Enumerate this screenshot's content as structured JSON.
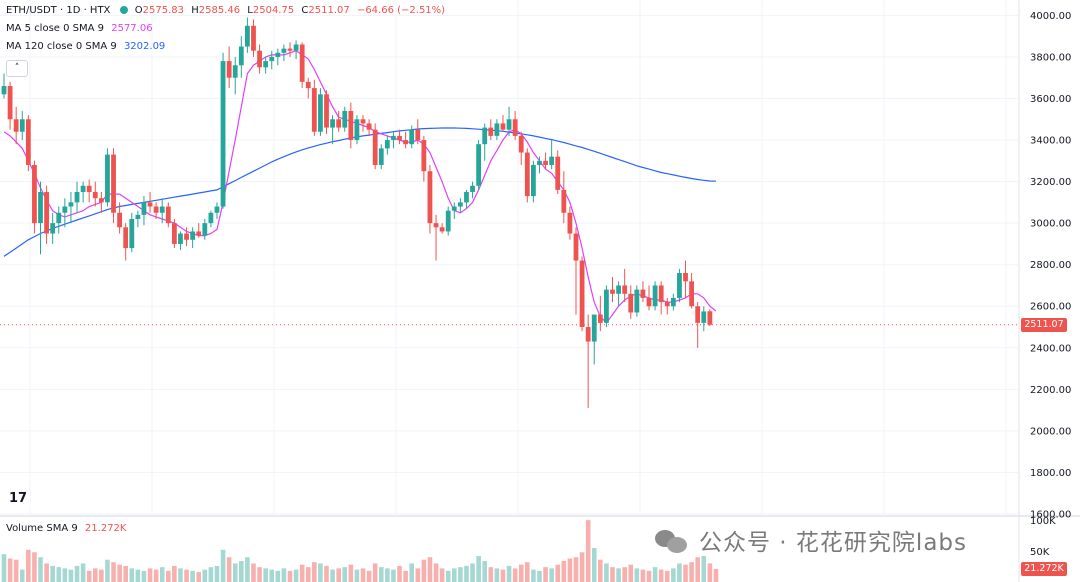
{
  "legend": {
    "symbol": "ETH/USDT · 1D · HTX",
    "ohlc": {
      "o_label": "O",
      "o": "2575.83",
      "h_label": "H",
      "h": "2585.46",
      "l_label": "L",
      "l": "2504.75",
      "c_label": "C",
      "c": "2511.07",
      "change": "−64.66 (−2.51%)"
    },
    "ma5": {
      "label": "MA 5 close 0 SMA 9",
      "value": "2577.06",
      "color": "#e040fb"
    },
    "ma120": {
      "label": "MA 120 close 0 SMA 9",
      "value": "3202.09",
      "color": "#2962ff"
    },
    "volume": {
      "label": "Volume SMA 9",
      "value": "21.272K"
    }
  },
  "collapse_icon": "chevron-up-icon",
  "logo": "tradingview-logo",
  "current_price_tag": "2511.07",
  "volume_tag": "21.272K",
  "watermark": "公众号 · 花花研究院labs",
  "colors": {
    "up": "#26a69a",
    "down": "#ef5350",
    "up_vol": "#a5d8d2",
    "down_vol": "#f7b0ae",
    "ma5": "#e040fb",
    "ma120": "#2962ff",
    "grid": "#f0f3fa"
  },
  "chart_data": {
    "type": "candlestick",
    "title": "ETH/USDT · 1D · HTX",
    "price_axis": {
      "ticks": [
        1600,
        1800,
        2000,
        2200,
        2400,
        2600,
        2800,
        3000,
        3200,
        3400,
        3600,
        3800,
        4000
      ],
      "tick_labels": [
        "1600.00",
        "1800.00",
        "2000.00",
        "2200.00",
        "2400.00",
        "2600.00",
        "2800.00",
        "3000.00",
        "3200.00",
        "3400.00",
        "3600.00",
        "3800.00",
        "4000.00"
      ],
      "range": [
        1600,
        4050
      ]
    },
    "volume_axis": {
      "ticks": [
        50000,
        100000
      ],
      "tick_labels": [
        "50K",
        "100K"
      ],
      "range": [
        0,
        105000
      ]
    },
    "grid": true,
    "current_price": 2511.07,
    "candles_ohlc": [
      [
        3620,
        3720,
        3600,
        3660
      ],
      [
        3660,
        3680,
        3450,
        3500
      ],
      [
        3500,
        3560,
        3380,
        3440
      ],
      [
        3440,
        3540,
        3400,
        3500
      ],
      [
        3500,
        3520,
        3250,
        3280
      ],
      [
        3280,
        3300,
        2950,
        3000
      ],
      [
        3000,
        3200,
        2850,
        3150
      ],
      [
        3150,
        3180,
        2900,
        2950
      ],
      [
        2950,
        3050,
        2900,
        3000
      ],
      [
        3000,
        3080,
        2950,
        3050
      ],
      [
        3050,
        3120,
        2980,
        3080
      ],
      [
        3080,
        3150,
        3000,
        3100
      ],
      [
        3100,
        3200,
        3050,
        3150
      ],
      [
        3150,
        3200,
        3100,
        3180
      ],
      [
        3180,
        3210,
        3100,
        3150
      ],
      [
        3150,
        3200,
        3080,
        3120
      ],
      [
        3120,
        3150,
        3050,
        3100
      ],
      [
        3100,
        3360,
        3080,
        3330
      ],
      [
        3330,
        3360,
        3000,
        3050
      ],
      [
        3050,
        3100,
        2950,
        2980
      ],
      [
        2980,
        3000,
        2820,
        2880
      ],
      [
        2880,
        3050,
        2860,
        3020
      ],
      [
        3020,
        3060,
        2980,
        3040
      ],
      [
        3040,
        3130,
        2990,
        3100
      ],
      [
        3100,
        3150,
        3050,
        3080
      ],
      [
        3080,
        3100,
        3020,
        3050
      ],
      [
        3050,
        3120,
        3000,
        3080
      ],
      [
        3080,
        3100,
        2980,
        3000
      ],
      [
        3000,
        3020,
        2880,
        2900
      ],
      [
        2900,
        2960,
        2870,
        2950
      ],
      [
        2950,
        2980,
        2890,
        2920
      ],
      [
        2920,
        2980,
        2880,
        2960
      ],
      [
        2960,
        3000,
        2930,
        2940
      ],
      [
        2940,
        3020,
        2920,
        3000
      ],
      [
        3000,
        3060,
        2980,
        3050
      ],
      [
        3050,
        3100,
        3020,
        3080
      ],
      [
        3080,
        3820,
        3070,
        3780
      ],
      [
        3780,
        3850,
        3650,
        3700
      ],
      [
        3700,
        3800,
        3620,
        3760
      ],
      [
        3760,
        3900,
        3700,
        3850
      ],
      [
        3850,
        3990,
        3820,
        3950
      ],
      [
        3950,
        3980,
        3800,
        3830
      ],
      [
        3830,
        3860,
        3720,
        3750
      ],
      [
        3750,
        3800,
        3720,
        3780
      ],
      [
        3780,
        3830,
        3740,
        3800
      ],
      [
        3800,
        3840,
        3760,
        3820
      ],
      [
        3820,
        3860,
        3780,
        3840
      ],
      [
        3840,
        3870,
        3800,
        3830
      ],
      [
        3830,
        3880,
        3790,
        3860
      ],
      [
        3860,
        3870,
        3650,
        3680
      ],
      [
        3680,
        3700,
        3600,
        3650
      ],
      [
        3650,
        3690,
        3420,
        3440
      ],
      [
        3440,
        3650,
        3420,
        3620
      ],
      [
        3620,
        3640,
        3430,
        3460
      ],
      [
        3460,
        3520,
        3380,
        3500
      ],
      [
        3500,
        3540,
        3440,
        3460
      ],
      [
        3460,
        3560,
        3440,
        3540
      ],
      [
        3540,
        3580,
        3360,
        3400
      ],
      [
        3400,
        3520,
        3380,
        3500
      ],
      [
        3500,
        3520,
        3440,
        3480
      ],
      [
        3480,
        3500,
        3420,
        3450
      ],
      [
        3450,
        3480,
        3260,
        3280
      ],
      [
        3280,
        3380,
        3260,
        3360
      ],
      [
        3360,
        3420,
        3330,
        3400
      ],
      [
        3400,
        3440,
        3360,
        3420
      ],
      [
        3420,
        3450,
        3380,
        3400
      ],
      [
        3400,
        3440,
        3360,
        3380
      ],
      [
        3380,
        3470,
        3360,
        3450
      ],
      [
        3450,
        3500,
        3380,
        3400
      ],
      [
        3400,
        3420,
        3200,
        3250
      ],
      [
        3250,
        3280,
        2950,
        3000
      ],
      [
        3000,
        3040,
        2820,
        2980
      ],
      [
        2980,
        3000,
        2950,
        2960
      ],
      [
        2960,
        3080,
        2940,
        3060
      ],
      [
        3060,
        3100,
        3020,
        3080
      ],
      [
        3080,
        3120,
        3050,
        3100
      ],
      [
        3100,
        3160,
        3070,
        3150
      ],
      [
        3150,
        3200,
        3120,
        3180
      ],
      [
        3180,
        3400,
        3160,
        3380
      ],
      [
        3380,
        3480,
        3300,
        3460
      ],
      [
        3460,
        3500,
        3400,
        3420
      ],
      [
        3420,
        3500,
        3400,
        3480
      ],
      [
        3480,
        3520,
        3440,
        3450
      ],
      [
        3450,
        3560,
        3420,
        3500
      ],
      [
        3500,
        3540,
        3400,
        3420
      ],
      [
        3420,
        3440,
        3280,
        3340
      ],
      [
        3340,
        3360,
        3100,
        3130
      ],
      [
        3130,
        3300,
        3100,
        3280
      ],
      [
        3280,
        3320,
        3240,
        3300
      ],
      [
        3300,
        3340,
        3260,
        3280
      ],
      [
        3280,
        3400,
        3260,
        3320
      ],
      [
        3320,
        3350,
        3140,
        3160
      ],
      [
        3160,
        3250,
        3000,
        3050
      ],
      [
        3050,
        3080,
        2920,
        2950
      ],
      [
        2950,
        2980,
        2560,
        2820
      ],
      [
        2820,
        2840,
        2480,
        2500
      ],
      [
        2500,
        2560,
        2110,
        2430
      ],
      [
        2430,
        2480,
        2320,
        2560
      ],
      [
        2560,
        2650,
        2480,
        2520
      ],
      [
        2520,
        2700,
        2500,
        2680
      ],
      [
        2680,
        2740,
        2620,
        2660
      ],
      [
        2660,
        2720,
        2600,
        2700
      ],
      [
        2700,
        2780,
        2620,
        2660
      ],
      [
        2660,
        2700,
        2540,
        2570
      ],
      [
        2570,
        2700,
        2550,
        2680
      ],
      [
        2680,
        2720,
        2620,
        2640
      ],
      [
        2640,
        2700,
        2580,
        2600
      ],
      [
        2600,
        2720,
        2580,
        2700
      ],
      [
        2700,
        2720,
        2560,
        2620
      ],
      [
        2620,
        2640,
        2560,
        2600
      ],
      [
        2600,
        2660,
        2580,
        2640
      ],
      [
        2640,
        2780,
        2620,
        2760
      ],
      [
        2760,
        2820,
        2640,
        2720
      ],
      [
        2720,
        2760,
        2590,
        2600
      ],
      [
        2600,
        2620,
        2400,
        2520
      ],
      [
        2520,
        2600,
        2480,
        2575
      ],
      [
        2575.83,
        2585.46,
        2504.75,
        2511.07
      ]
    ],
    "ma5_values": [
      3440,
      3420,
      3390,
      3360,
      3300,
      3240,
      3170,
      3110,
      3060,
      3040,
      3030,
      3040,
      3050,
      3060,
      3080,
      3090,
      3100,
      3140,
      3140,
      3140,
      3120,
      3100,
      3080,
      3060,
      3040,
      3030,
      3020,
      3010,
      3000,
      2980,
      2960,
      2950,
      2940,
      2940,
      2950,
      2970,
      3100,
      3250,
      3400,
      3560,
      3720,
      3760,
      3780,
      3800,
      3810,
      3810,
      3810,
      3820,
      3830,
      3810,
      3790,
      3740,
      3680,
      3620,
      3560,
      3510,
      3500,
      3490,
      3480,
      3470,
      3460,
      3440,
      3430,
      3420,
      3410,
      3400,
      3390,
      3390,
      3400,
      3380,
      3340,
      3270,
      3200,
      3120,
      3060,
      3050,
      3070,
      3100,
      3160,
      3230,
      3300,
      3350,
      3400,
      3440,
      3450,
      3430,
      3390,
      3340,
      3300,
      3260,
      3240,
      3200,
      3160,
      3100,
      3000,
      2880,
      2740,
      2620,
      2550,
      2520,
      2560,
      2600,
      2630,
      2650,
      2660,
      2650,
      2640,
      2630,
      2630,
      2620,
      2620,
      2630,
      2640,
      2660,
      2660,
      2640,
      2600,
      2577.06
    ],
    "ma120_values": [
      2840,
      2860,
      2880,
      2900,
      2920,
      2935,
      2950,
      2962,
      2975,
      2985,
      2995,
      3005,
      3015,
      3025,
      3035,
      3045,
      3055,
      3065,
      3073,
      3080,
      3085,
      3090,
      3095,
      3100,
      3105,
      3110,
      3115,
      3120,
      3125,
      3130,
      3135,
      3140,
      3145,
      3150,
      3155,
      3160,
      3175,
      3190,
      3205,
      3220,
      3235,
      3250,
      3265,
      3280,
      3295,
      3308,
      3320,
      3332,
      3343,
      3353,
      3362,
      3370,
      3378,
      3385,
      3392,
      3398,
      3404,
      3410,
      3415,
      3420,
      3424,
      3428,
      3432,
      3436,
      3440,
      3444,
      3447,
      3450,
      3453,
      3455,
      3456,
      3457,
      3458,
      3458,
      3458,
      3457,
      3456,
      3454,
      3452,
      3450,
      3448,
      3445,
      3442,
      3438,
      3434,
      3430,
      3425,
      3420,
      3414,
      3408,
      3402,
      3395,
      3388,
      3380,
      3372,
      3364,
      3355,
      3346,
      3336,
      3326,
      3316,
      3306,
      3296,
      3286,
      3276,
      3268,
      3260,
      3252,
      3244,
      3238,
      3232,
      3226,
      3220,
      3215,
      3210,
      3206,
      3203,
      3202.09
    ],
    "volume_values": [
      45,
      38,
      36,
      20,
      52,
      48,
      40,
      30,
      26,
      24,
      22,
      20,
      26,
      30,
      18,
      22,
      20,
      36,
      32,
      28,
      26,
      22,
      20,
      18,
      22,
      20,
      24,
      18,
      26,
      22,
      20,
      18,
      16,
      20,
      24,
      26,
      52,
      40,
      30,
      34,
      40,
      30,
      24,
      22,
      20,
      18,
      22,
      18,
      20,
      28,
      24,
      32,
      30,
      26,
      20,
      22,
      24,
      28,
      20,
      22,
      18,
      30,
      24,
      22,
      20,
      26,
      18,
      30,
      22,
      36,
      40,
      30,
      22,
      18,
      22,
      24,
      26,
      30,
      42,
      34,
      24,
      22,
      20,
      26,
      22,
      28,
      32,
      20,
      18,
      24,
      22,
      28,
      34,
      38,
      40,
      48,
      100,
      55,
      36,
      30,
      24,
      22,
      24,
      28,
      22,
      20,
      18,
      24,
      20,
      18,
      22,
      30,
      28,
      32,
      40,
      42,
      30,
      21.272
    ]
  }
}
